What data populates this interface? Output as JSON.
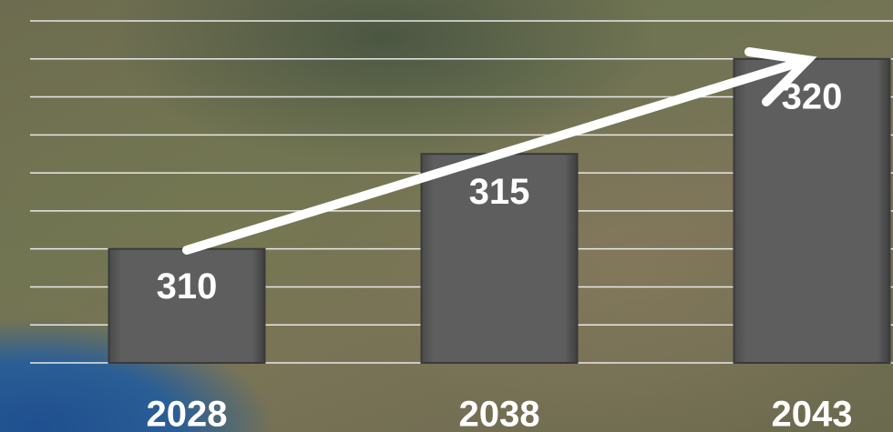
{
  "chart_data": {
    "type": "bar",
    "categories": [
      "2028",
      "2038",
      "2043"
    ],
    "values": [
      310,
      315,
      320
    ],
    "color": "#5b5b5b",
    "ylim": [
      304,
      322
    ],
    "yticks": [
      304,
      306,
      308,
      310,
      312,
      314,
      316,
      318,
      320,
      322
    ],
    "grid": true
  }
}
